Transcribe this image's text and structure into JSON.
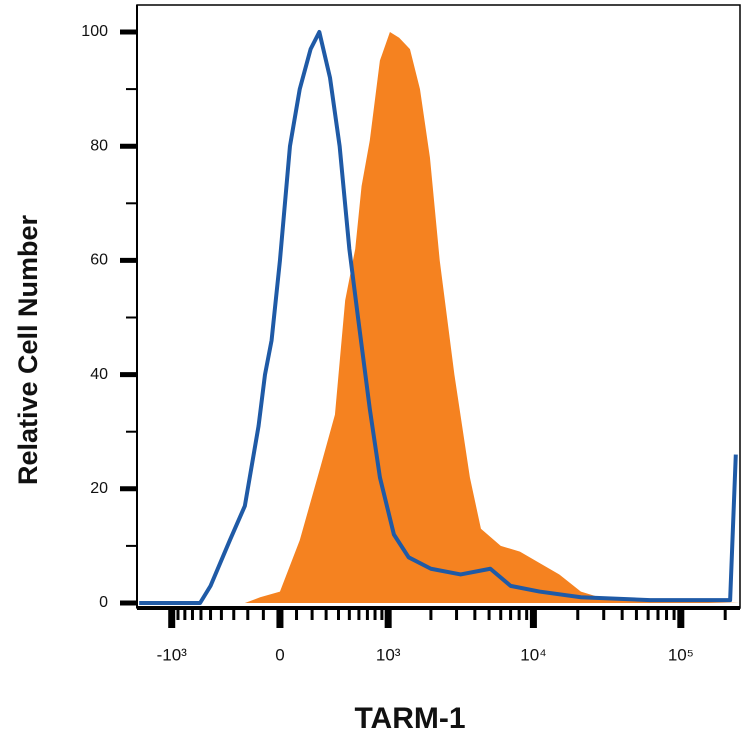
{
  "chart_data": {
    "type": "area",
    "y_label": "Relative Cell Number",
    "x_label": "TARM-1",
    "xscale": "biexponential",
    "xlim": [
      -1760,
      252000
    ],
    "ylim": [
      0,
      100
    ],
    "yticks": [
      0,
      20,
      40,
      60,
      80,
      100
    ],
    "yminorticks": [
      10,
      30,
      50,
      70,
      90
    ],
    "xticks": [
      {
        "value": -1000,
        "label": "-10³"
      },
      0,
      {
        "value": 1000,
        "label": "10³"
      },
      {
        "value": 10000,
        "label": "10⁴"
      },
      {
        "value": 100000,
        "label": "10⁵"
      }
    ],
    "xminorticks": [
      -900,
      -800,
      -700,
      -600,
      -500,
      -400,
      -300,
      -200,
      -100,
      100,
      200,
      300,
      400,
      500,
      600,
      700,
      800,
      900,
      2000,
      3000,
      4000,
      5000,
      6000,
      7000,
      8000,
      9000,
      20000,
      30000,
      40000,
      50000,
      60000,
      70000,
      80000,
      90000,
      200000
    ],
    "series": [
      {
        "color": "#f58220",
        "fill": true,
        "x": [
          -220,
          -120,
          0,
          120,
          260,
          370,
          460,
          560,
          630,
          730,
          870,
          1030,
          1200,
          1430,
          1680,
          1970,
          2300,
          2900,
          3700,
          4400,
          6000,
          8100,
          11000,
          15000,
          21000,
          28000,
          62000,
          250000
        ],
        "values": [
          0,
          1,
          2,
          11,
          24,
          33,
          53,
          62,
          73,
          81,
          95,
          100,
          99,
          97,
          90,
          78,
          60,
          40,
          22,
          13,
          10,
          9,
          7,
          5,
          2,
          1,
          0.5,
          0
        ]
      },
      {
        "color": "#1f5aa6",
        "fill": false,
        "x": [
          -1700,
          -610,
          -500,
          -330,
          -220,
          -130,
          -90,
          -50,
          0,
          60,
          120,
          190,
          250,
          330,
          410,
          500,
          590,
          730,
          870,
          1100,
          1400,
          2000,
          3200,
          5100,
          7000,
          11000,
          21000,
          62000,
          216000,
          236000
        ],
        "values": [
          0,
          0,
          3,
          11,
          17,
          31,
          40,
          46,
          60,
          80,
          90,
          97,
          100,
          92,
          80,
          62,
          50,
          34,
          22,
          12,
          8,
          6,
          5,
          6,
          3,
          2,
          1,
          0.5,
          0.5,
          26
        ]
      }
    ]
  }
}
